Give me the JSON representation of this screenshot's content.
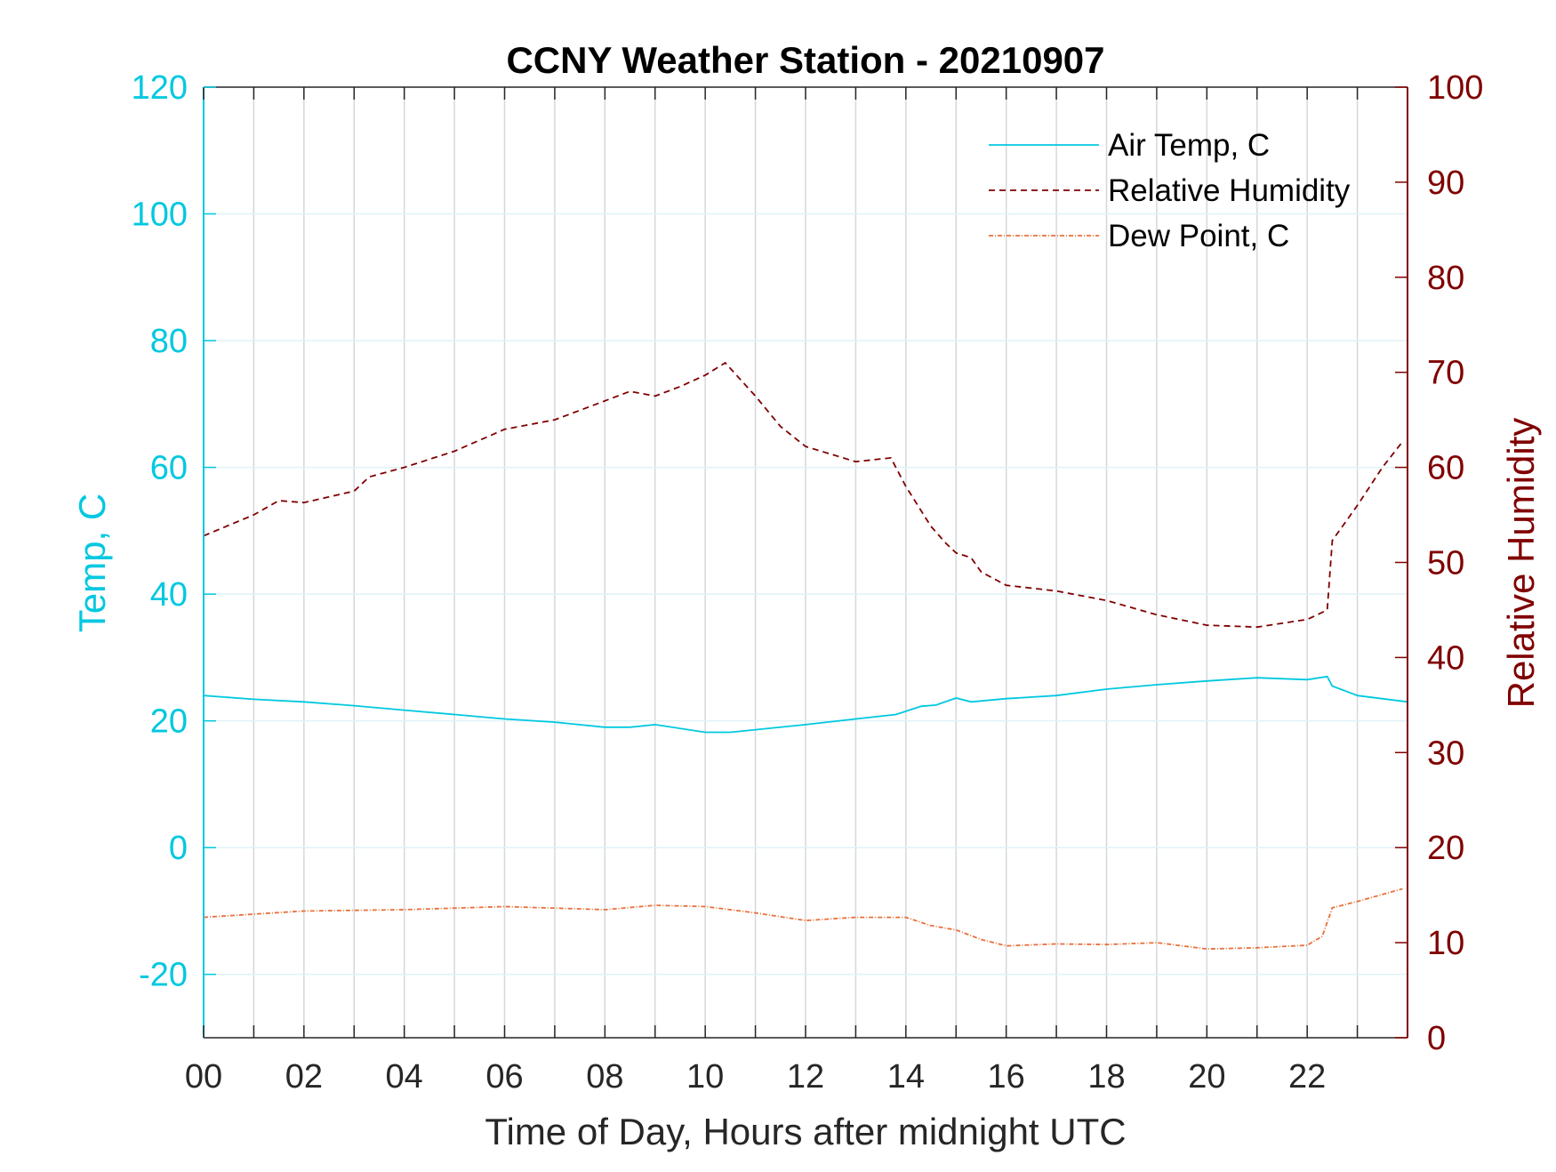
{
  "chart_data": {
    "type": "line",
    "title": "CCNY Weather Station - 20210907",
    "xlabel": "Time of Day, Hours after midnight UTC",
    "ylabel_left": "Temp, C",
    "ylabel_right": "Relative Humidity",
    "xlim": [
      0,
      24
    ],
    "ylim_left": [
      -30,
      120
    ],
    "ylim_right": [
      0,
      100
    ],
    "x_ticks": [
      0,
      2,
      4,
      6,
      8,
      10,
      12,
      14,
      16,
      18,
      20,
      22
    ],
    "x_tick_labels": [
      "00",
      "02",
      "04",
      "06",
      "08",
      "10",
      "12",
      "14",
      "16",
      "18",
      "20",
      "22"
    ],
    "y_left_ticks": [
      -20,
      0,
      20,
      40,
      60,
      80,
      100,
      120
    ],
    "y_left_tick_labels": [
      "-20",
      "0",
      "20",
      "40",
      "60",
      "80",
      "100",
      "120"
    ],
    "y_right_ticks": [
      0,
      10,
      20,
      30,
      40,
      50,
      60,
      70,
      80,
      90,
      100
    ],
    "y_right_tick_labels": [
      "0",
      "10",
      "20",
      "30",
      "40",
      "50",
      "60",
      "70",
      "80",
      "90",
      "100"
    ],
    "grid": true,
    "legend_placement": "top-right",
    "colors": {
      "left_axis": "#00C8E0",
      "right_axis": "#800000",
      "air_temp": "#00C8E0",
      "humidity": "#800000",
      "dew_point": "#E8703A"
    },
    "series": [
      {
        "name": "Air Temp, C",
        "axis": "left",
        "style": "solid",
        "x": [
          0,
          1,
          2,
          3,
          4,
          5,
          6,
          7,
          8,
          8.5,
          9,
          10,
          10.5,
          11,
          12,
          13,
          13.8,
          14.3,
          14.6,
          15,
          15.3,
          16,
          17,
          18,
          19,
          20,
          21,
          22,
          22.4,
          22.5,
          23,
          24
        ],
        "y": [
          24,
          23.4,
          23,
          22.4,
          21.7,
          21,
          20.3,
          19.8,
          19,
          19,
          19.4,
          18.2,
          18.2,
          18.6,
          19.4,
          20.3,
          21,
          22.3,
          22.5,
          23.6,
          23,
          23.5,
          24,
          25,
          25.7,
          26.3,
          26.8,
          26.5,
          27,
          25.5,
          24,
          23
        ]
      },
      {
        "name": "Relative Humidity",
        "axis": "right",
        "style": "dashed",
        "x": [
          0,
          1,
          1.5,
          2,
          3,
          3.3,
          4,
          5,
          6,
          7,
          8,
          8.5,
          9,
          9.5,
          10,
          10.4,
          11,
          11.5,
          12,
          13,
          13.7,
          14,
          14.5,
          14.8,
          15,
          15.3,
          15.5,
          16,
          17,
          18,
          19,
          20,
          21,
          22,
          22.4,
          22.5,
          23,
          23.5,
          23.9
        ],
        "y": [
          52.8,
          55,
          56.5,
          56.3,
          57.5,
          59,
          60,
          61.7,
          64,
          65,
          67,
          68,
          67.5,
          68.5,
          69.7,
          71,
          67.5,
          64.3,
          62.2,
          60.6,
          61,
          58,
          53.8,
          52,
          51,
          50.5,
          49,
          47.6,
          47,
          46,
          44.5,
          43.4,
          43.2,
          44,
          45,
          52.3,
          56,
          60,
          62.7
        ]
      },
      {
        "name": "Dew Point, C",
        "axis": "left",
        "style": "dashdot",
        "x": [
          0,
          1,
          2,
          4,
          6,
          8,
          9,
          10,
          11,
          12,
          13,
          14,
          14.5,
          15,
          15.5,
          16,
          17,
          18,
          19,
          20,
          21,
          22,
          22.3,
          22.5,
          23,
          23.9
        ],
        "y": [
          -11,
          -10.5,
          -10,
          -9.8,
          -9.3,
          -9.8,
          -9.1,
          -9.3,
          -10.3,
          -11.5,
          -11,
          -11,
          -12.3,
          -13,
          -14.5,
          -15.5,
          -15.2,
          -15.3,
          -15,
          -16,
          -15.8,
          -15.4,
          -14,
          -9.5,
          -8.5,
          -6.5
        ]
      }
    ]
  }
}
